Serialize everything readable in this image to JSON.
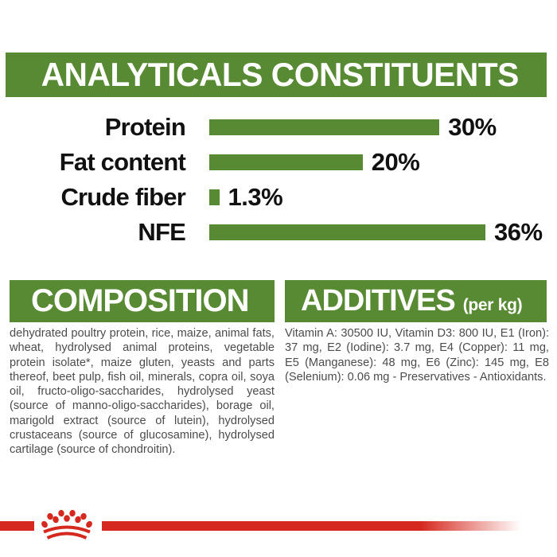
{
  "colors": {
    "green": "#588a34",
    "red": "#d5291f",
    "body_text": "#4c4c4c",
    "chart_text": "#111111",
    "background": "#ffffff"
  },
  "analytics": {
    "title": "ANALYTICALS CONSTITUENTS"
  },
  "chart_data": {
    "type": "bar",
    "orientation": "horizontal",
    "title": "ANALYTICALS CONSTITUENTS",
    "categories": [
      "Protein",
      "Fat content",
      "Crude fiber",
      "NFE"
    ],
    "values": [
      30,
      20,
      1.3,
      36
    ],
    "value_labels": [
      "30%",
      "20%",
      "1.3%",
      "36%"
    ],
    "unit": "%",
    "xlim": [
      0,
      38
    ],
    "bar_color": "#588a34",
    "grid": false,
    "legend": "none"
  },
  "composition": {
    "title": "COMPOSITION",
    "body": "dehydrated poultry protein, rice, maize, animal fats, wheat, hydrolysed animal proteins, vegetable protein isolate*, maize gluten, yeasts and parts thereof, beet pulp, fish oil, minerals, copra oil, soya oil, fructo-oligo-saccharides, hydrolysed yeast (source of manno-oligo-saccharides), borage oil, marigold extract (source of lutein), hydrolysed crustaceans (source of glucosamine), hydrolysed cartilage (source of chondroitin)."
  },
  "additives": {
    "title": "ADDITIVES",
    "suffix": "(per kg)",
    "body": "Vitamin A: 30500 IU, Vitamin D3: 800 IU, E1 (Iron): 37 mg, E2 (Iodine): 3.7 mg, E4 (Copper): 11 mg, E5 (Manganese): 48 mg, E6 (Zinc): 145 mg, E8 (Selenium): 0.06 mg - Preservatives - Antioxidants."
  },
  "footer": {
    "logo": "royal-canin-crown"
  }
}
